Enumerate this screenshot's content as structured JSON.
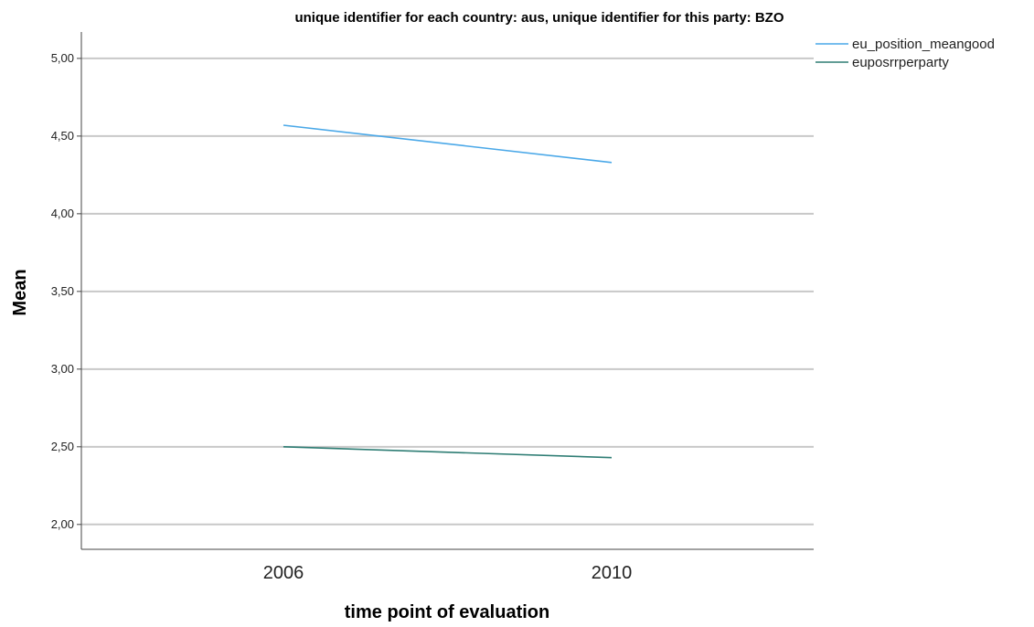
{
  "chart_data": {
    "type": "line",
    "title": "unique identifier for each country: aus, unique identifier for this party: BZO",
    "xlabel": "time point of evaluation",
    "ylabel": "Mean",
    "categories": [
      "2006",
      "2010"
    ],
    "ylim": [
      1.84,
      5.17
    ],
    "yticks": [
      2.0,
      2.5,
      3.0,
      3.5,
      4.0,
      4.5,
      5.0
    ],
    "ytick_labels": [
      "2,00",
      "2,50",
      "3,00",
      "3,50",
      "4,00",
      "4,50",
      "5,00"
    ],
    "grid": "horizontal",
    "legend_position": "top-right",
    "series": [
      {
        "name": "eu_position_meangood",
        "values": [
          4.57,
          4.33
        ],
        "color": "#4aa8e8"
      },
      {
        "name": "euposrrperparty",
        "values": [
          2.5,
          2.43
        ],
        "color": "#2e7d74"
      }
    ]
  }
}
